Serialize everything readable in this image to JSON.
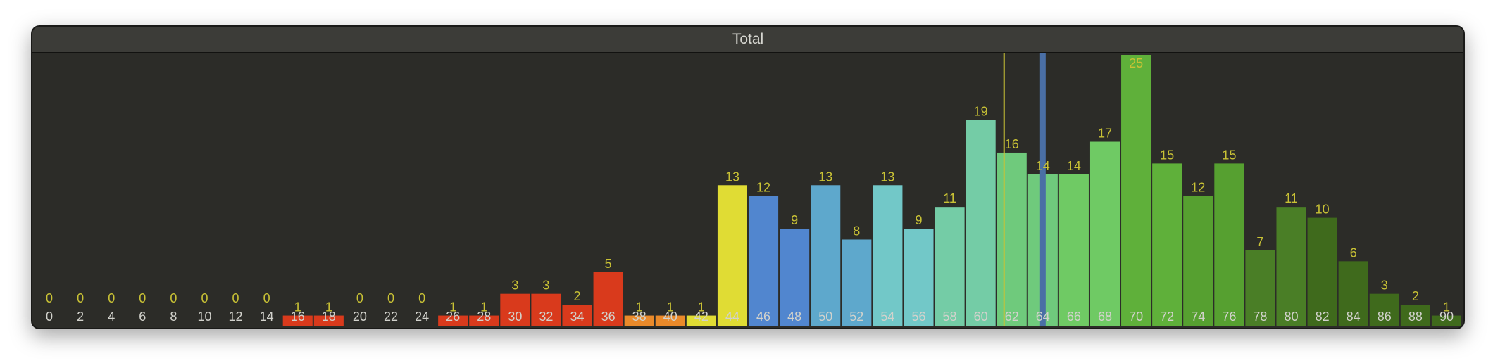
{
  "window": {
    "title": "Total"
  },
  "chart_data": {
    "type": "bar",
    "title": "Total",
    "categories": [
      "0",
      "2",
      "4",
      "6",
      "8",
      "10",
      "12",
      "14",
      "16",
      "18",
      "20",
      "22",
      "24",
      "26",
      "28",
      "30",
      "32",
      "34",
      "36",
      "38",
      "40",
      "42",
      "44",
      "46",
      "48",
      "50",
      "52",
      "54",
      "56",
      "58",
      "60",
      "62",
      "64",
      "66",
      "68",
      "70",
      "72",
      "74",
      "76",
      "78",
      "80",
      "82",
      "84",
      "86",
      "88",
      "90"
    ],
    "values": [
      0,
      0,
      0,
      0,
      0,
      0,
      0,
      0,
      1,
      1,
      0,
      0,
      0,
      1,
      1,
      3,
      3,
      2,
      5,
      1,
      1,
      1,
      13,
      12,
      9,
      13,
      8,
      13,
      9,
      11,
      19,
      16,
      14,
      14,
      17,
      25,
      15,
      12,
      15,
      7,
      11,
      10,
      6,
      3,
      2,
      1
    ],
    "bar_colors": [
      "#d93a1c",
      "#d93a1c",
      "#d93a1c",
      "#d93a1c",
      "#d93a1c",
      "#d93a1c",
      "#d93a1c",
      "#d93a1c",
      "#d93a1c",
      "#d93a1c",
      "#d93a1c",
      "#d93a1c",
      "#d93a1c",
      "#d93a1c",
      "#d93a1c",
      "#d93a1c",
      "#d93a1c",
      "#d93a1c",
      "#d93a1c",
      "#ea8a2a",
      "#ea8a2a",
      "#e0dc34",
      "#e0dc34",
      "#5186cf",
      "#5186cf",
      "#5ea8cc",
      "#5ea8cc",
      "#72c8c8",
      "#72c8c8",
      "#74cca6",
      "#74cca6",
      "#6fca7c",
      "#6fca7c",
      "#6fca64",
      "#6fca64",
      "#5fb03a",
      "#5fb03a",
      "#56a030",
      "#56a030",
      "#4a7e26",
      "#4a7e26",
      "#3f6a1c",
      "#3f6a1c",
      "#3f6a1c",
      "#3f6a1c",
      "#3f6a1c"
    ],
    "ylim": [
      0,
      25
    ],
    "grid": false,
    "legend": "none",
    "markers": [
      {
        "name": "mean",
        "x": 61.5,
        "color": "#c9c235"
      },
      {
        "name": "median",
        "x": 64,
        "color": "#4a6fa5"
      }
    ]
  }
}
